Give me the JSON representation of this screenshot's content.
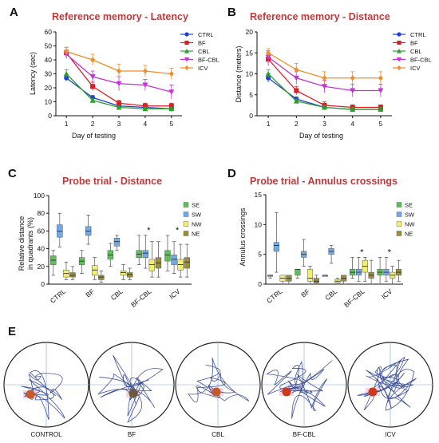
{
  "panels": {
    "A": "A",
    "B": "B",
    "C": "C",
    "D": "D",
    "E": "E"
  },
  "groups": [
    {
      "name": "CTRL",
      "color": "#1f3fd6",
      "marker": "circle"
    },
    {
      "name": "BF",
      "color": "#e01b24",
      "marker": "square"
    },
    {
      "name": "CBL",
      "color": "#2ca02c",
      "marker": "triangle"
    },
    {
      "name": "BF-CBL",
      "color": "#c233d8",
      "marker": "triangle-down"
    },
    {
      "name": "ICV",
      "color": "#f28c28",
      "marker": "diamond"
    }
  ],
  "quadrants": [
    {
      "name": "SE",
      "color": "#5fbf5f"
    },
    {
      "name": "SW",
      "color": "#74a9e8"
    },
    {
      "name": "NW",
      "color": "#f2ef6a"
    },
    {
      "name": "NE",
      "color": "#9a8f3a"
    }
  ],
  "chart_data": [
    {
      "id": "A",
      "type": "line",
      "title": "Reference memory - Latency",
      "xlabel": "Day of testing",
      "ylabel": "Latency (sec)",
      "x": [
        1,
        2,
        3,
        4,
        5
      ],
      "xlim": [
        0.6,
        5.4
      ],
      "ylim": [
        0,
        60
      ],
      "yticks": [
        0,
        10,
        20,
        30,
        40,
        50,
        60
      ],
      "legend": "top-right",
      "series": [
        {
          "name": "CTRL",
          "values": [
            27,
            13,
            7,
            6,
            5
          ],
          "err": [
            2,
            1.5,
            1,
            1,
            1
          ]
        },
        {
          "name": "BF",
          "values": [
            45,
            21,
            9,
            7,
            7
          ],
          "err": [
            4,
            3,
            2,
            2,
            2
          ]
        },
        {
          "name": "CBL",
          "values": [
            30,
            11,
            6,
            5,
            5
          ],
          "err": [
            3,
            1.5,
            1,
            1,
            1
          ]
        },
        {
          "name": "BF-CBL",
          "values": [
            44,
            28,
            23,
            22,
            17
          ],
          "err": [
            3,
            4,
            5,
            4,
            5
          ]
        },
        {
          "name": "ICV",
          "values": [
            46,
            40,
            32,
            32,
            30
          ],
          "err": [
            3,
            4,
            5,
            4,
            4
          ]
        }
      ]
    },
    {
      "id": "B",
      "type": "line",
      "title": "Reference memory - Distance",
      "xlabel": "Day of testing",
      "ylabel": "Distance (meters)",
      "x": [
        1,
        2,
        3,
        4,
        5
      ],
      "xlim": [
        0.6,
        5.4
      ],
      "ylim": [
        0,
        20
      ],
      "yticks": [
        0,
        5,
        10,
        15,
        20
      ],
      "legend": "top-right",
      "series": [
        {
          "name": "CTRL",
          "values": [
            9,
            4,
            2,
            1.5,
            1.5
          ],
          "err": [
            1,
            0.5,
            0.5,
            0.5,
            0.5
          ]
        },
        {
          "name": "BF",
          "values": [
            13.5,
            6,
            2.5,
            2,
            2
          ],
          "err": [
            1.5,
            1,
            0.8,
            0.6,
            0.6
          ]
        },
        {
          "name": "CBL",
          "values": [
            10,
            3.5,
            2,
            1.5,
            1.5
          ],
          "err": [
            1,
            0.5,
            0.5,
            0.5,
            0.5
          ]
        },
        {
          "name": "BF-CBL",
          "values": [
            14,
            9,
            7,
            6,
            6
          ],
          "err": [
            1.5,
            1.5,
            1.5,
            1.5,
            1.5
          ]
        },
        {
          "name": "ICV",
          "values": [
            15,
            11,
            9,
            9,
            9
          ],
          "err": [
            1,
            1.5,
            1.5,
            1.5,
            1.5
          ]
        }
      ]
    },
    {
      "id": "C",
      "type": "box",
      "title": "Probe trial - Distance",
      "xlabel": "",
      "ylabel": "Relative distance in quadrants (%)",
      "ylabel_lines": [
        "Relative distance",
        "in quadrants (%)"
      ],
      "categories": [
        "CTRL",
        "BF",
        "CBL",
        "BF-CBL",
        "ICV"
      ],
      "ylim": [
        0,
        100
      ],
      "yticks": [
        0,
        20,
        40,
        60,
        80,
        100
      ],
      "legend": "top-right",
      "significance": {
        "BF-CBL": "*",
        "ICV": "*"
      },
      "series": [
        {
          "name": "SE",
          "boxes": [
            [
              10,
              22,
              27,
              32,
              38
            ],
            [
              12,
              22,
              26,
              30,
              38
            ],
            [
              20,
              28,
              33,
              38,
              46
            ],
            [
              22,
              30,
              34,
              38,
              55
            ],
            [
              15,
              26,
              33,
              38,
              55
            ]
          ]
        },
        {
          "name": "SW",
          "boxes": [
            [
              42,
              53,
              60,
              67,
              80
            ],
            [
              45,
              55,
              60,
              65,
              78
            ],
            [
              38,
              43,
              48,
              52,
              55
            ],
            [
              18,
              30,
              35,
              38,
              55
            ],
            [
              12,
              22,
              28,
              33,
              48
            ]
          ]
        },
        {
          "name": "NW",
          "boxes": [
            [
              5,
              8,
              12,
              16,
              25
            ],
            [
              5,
              10,
              16,
              21,
              30
            ],
            [
              5,
              10,
              13,
              15,
              22
            ],
            [
              8,
              15,
              22,
              28,
              48
            ],
            [
              8,
              16,
              22,
              28,
              45
            ]
          ]
        },
        {
          "name": "NE",
          "boxes": [
            [
              5,
              8,
              10,
              13,
              20
            ],
            [
              2,
              5,
              8,
              10,
              15
            ],
            [
              5,
              8,
              11,
              13,
              18
            ],
            [
              8,
              18,
              24,
              30,
              48
            ],
            [
              8,
              18,
              25,
              30,
              45
            ]
          ]
        }
      ]
    },
    {
      "id": "D",
      "type": "box",
      "title": "Probe trial - Annulus crossings",
      "xlabel": "",
      "ylabel": "Annulus crossings",
      "categories": [
        "CTRL",
        "BF",
        "CBL",
        "BF-CBL",
        "ICV"
      ],
      "ylim": [
        0,
        15
      ],
      "yticks": [
        0,
        5,
        10,
        15
      ],
      "legend": "top-right",
      "significance": {
        "BF-CBL": "*",
        "ICV": "*"
      },
      "series": [
        {
          "name": "SE",
          "boxes": [
            [
              1,
              1.5,
              1.5,
              1.5,
              1.5
            ],
            [
              1,
              1.5,
              2.5,
              2.5,
              2.5
            ],
            [
              1.5,
              1.5,
              1.5,
              1.5,
              1.5
            ],
            [
              1,
              1.5,
              2,
              2.5,
              4.5
            ],
            [
              0,
              1.5,
              2,
              2.5,
              4.5
            ]
          ]
        },
        {
          "name": "SW",
          "boxes": [
            [
              2,
              5.5,
              6.5,
              7,
              12
            ],
            [
              3,
              4.5,
              5,
              5.5,
              7.5
            ],
            [
              3.5,
              5,
              5.5,
              6,
              6.5
            ],
            [
              0.5,
              1.5,
              2,
              2.5,
              4.5
            ],
            [
              0.5,
              1.5,
              2,
              2.5,
              4.5
            ]
          ]
        },
        {
          "name": "NW",
          "boxes": [
            [
              0,
              0.5,
              1,
              1.5,
              1.5
            ],
            [
              0,
              0.5,
              1,
              2.5,
              3
            ],
            [
              0,
              0.2,
              0.5,
              0.8,
              1
            ],
            [
              0.5,
              2,
              3,
              4,
              4.5
            ],
            [
              0,
              1,
              1.5,
              2,
              3
            ]
          ]
        },
        {
          "name": "NE",
          "boxes": [
            [
              0,
              0.5,
              1,
              1.5,
              1.5
            ],
            [
              0,
              0.2,
              0.5,
              1,
              1.5
            ],
            [
              0,
              0.5,
              1,
              1.5,
              1.5
            ],
            [
              0,
              1,
              1.5,
              2,
              4
            ],
            [
              0.5,
              1.5,
              2,
              2.5,
              4
            ]
          ]
        }
      ]
    }
  ],
  "mazes": [
    {
      "label": "CONTROL"
    },
    {
      "label": "BF"
    },
    {
      "label": "CBL"
    },
    {
      "label": "BF-CBL"
    },
    {
      "label": "ICV"
    }
  ]
}
